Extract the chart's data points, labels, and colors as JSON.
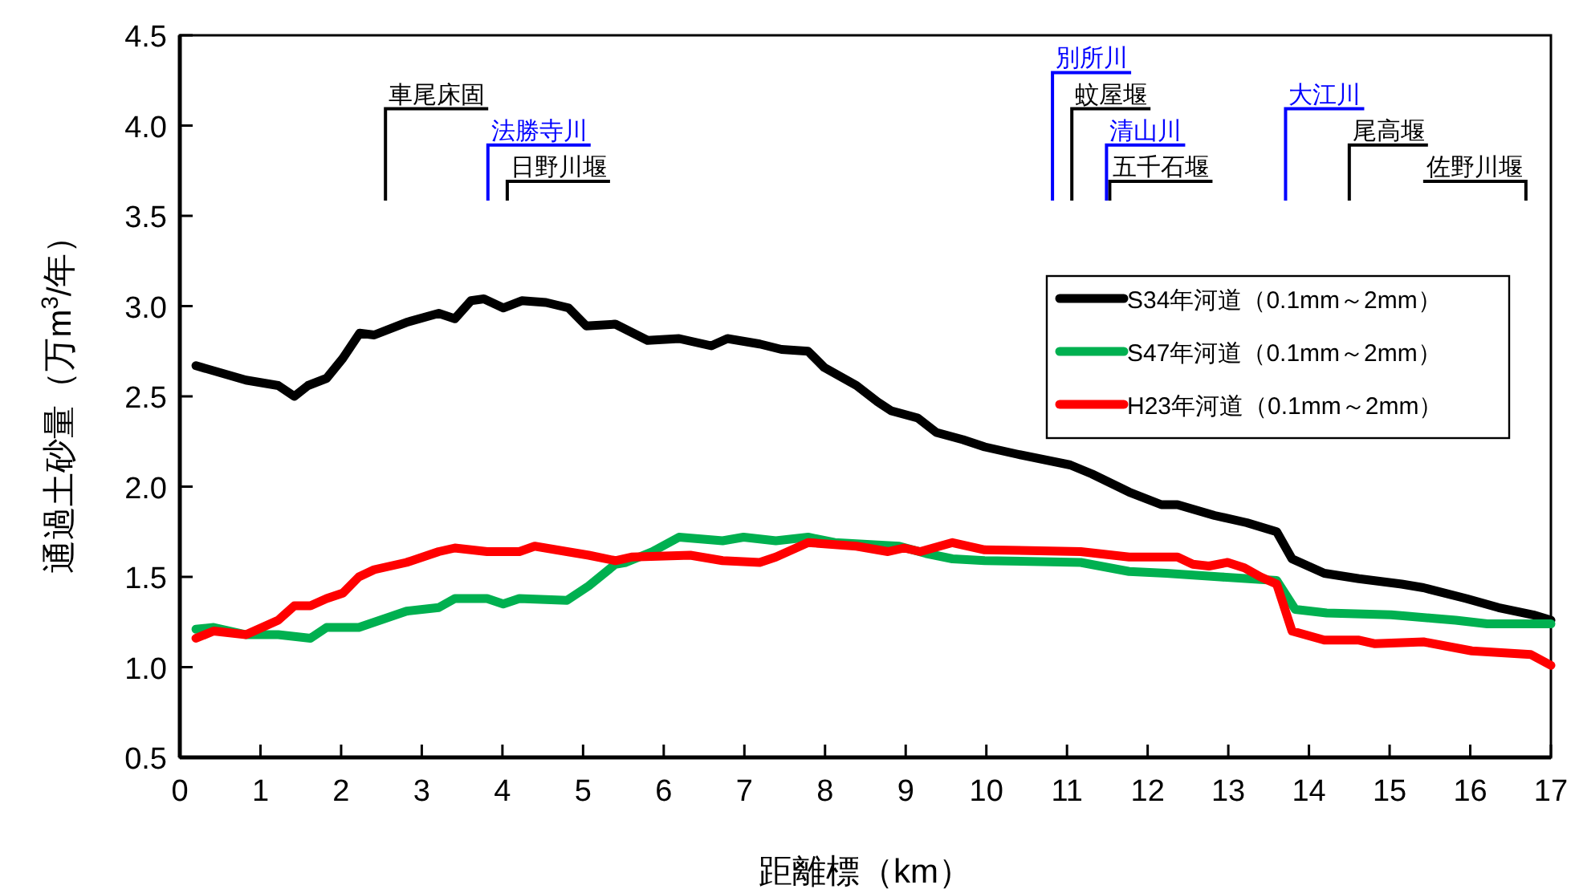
{
  "chart_data": {
    "type": "line",
    "xlabel": "距離標（km）",
    "ylabel": "通過土砂量（万m$^{3}$/年）",
    "xlim": [
      0,
      17
    ],
    "xticks": [
      0,
      1,
      2,
      3,
      4,
      5,
      6,
      7,
      8,
      9,
      10,
      11,
      12,
      13,
      14,
      15,
      16,
      17
    ],
    "ylim": [
      0.5,
      4.5
    ],
    "yticks": [
      0.5,
      {
        "value": 1,
        "label": "1.0"
      },
      1.5,
      {
        "value": 2,
        "label": "2.0"
      },
      2.5,
      {
        "value": 3,
        "label": "3.0"
      },
      3.5,
      {
        "value": 4,
        "label": "4.0"
      },
      4.5
    ],
    "grid": false,
    "legend": "right",
    "marker": "none",
    "line_style": "solid",
    "series": [
      {
        "name": "S34年河道（0.1mm～2mm）",
        "color": "#000000",
        "x": [
          0.2,
          0.82,
          1.22,
          1.42,
          1.59,
          1.82,
          2.02,
          2.23,
          2.41,
          2.81,
          3.21,
          3.41,
          3.61,
          3.77,
          4.01,
          4.24,
          4.54,
          4.82,
          5.04,
          5.4,
          5.8,
          6.19,
          6.59,
          6.79,
          7.19,
          7.46,
          7.79,
          7.99,
          8.39,
          8.65,
          8.82,
          9.15,
          9.38,
          9.71,
          9.98,
          10.38,
          11.04,
          11.31,
          11.77,
          12.17,
          12.37,
          12.83,
          13.23,
          13.6,
          13.79,
          14.19,
          14.62,
          15.15,
          15.42,
          15.95,
          16.35,
          16.78,
          17
        ],
        "values": [
          2.67,
          2.59,
          2.56,
          2.5,
          2.56,
          2.6,
          2.71,
          2.85,
          2.84,
          2.91,
          2.96,
          2.93,
          3.03,
          3.04,
          2.99,
          3.03,
          3.02,
          2.99,
          2.89,
          2.9,
          2.81,
          2.82,
          2.78,
          2.82,
          2.79,
          2.76,
          2.75,
          2.66,
          2.56,
          2.47,
          2.42,
          2.38,
          2.3,
          2.26,
          2.22,
          2.18,
          2.12,
          2.07,
          1.97,
          1.9,
          1.9,
          1.84,
          1.8,
          1.75,
          1.6,
          1.52,
          1.49,
          1.46,
          1.44,
          1.38,
          1.33,
          1.29,
          1.26
        ]
      },
      {
        "name": "S47年河道（0.1mm～2mm）",
        "color": "#00b050",
        "x": [
          0.2,
          0.42,
          0.82,
          1.22,
          1.62,
          1.82,
          2.22,
          2.81,
          3.21,
          3.41,
          3.81,
          4.01,
          4.21,
          4.8,
          5.07,
          5.4,
          5.53,
          5.86,
          6.19,
          6.73,
          6.99,
          7.39,
          7.79,
          8.12,
          8.92,
          9.25,
          9.58,
          9.98,
          11.17,
          11.77,
          12.23,
          12.9,
          13.6,
          13.83,
          14.22,
          15.02,
          15.55,
          15.82,
          16.21,
          17
        ],
        "values": [
          1.21,
          1.22,
          1.18,
          1.18,
          1.16,
          1.22,
          1.22,
          1.31,
          1.33,
          1.38,
          1.38,
          1.35,
          1.38,
          1.37,
          1.45,
          1.57,
          1.58,
          1.64,
          1.72,
          1.7,
          1.72,
          1.7,
          1.72,
          1.69,
          1.67,
          1.63,
          1.6,
          1.59,
          1.58,
          1.53,
          1.52,
          1.5,
          1.48,
          1.32,
          1.3,
          1.29,
          1.27,
          1.26,
          1.24,
          1.24
        ]
      },
      {
        "name": "H23年河道（0.1mm～2mm）",
        "color": "#ff0000",
        "x": [
          0.2,
          0.42,
          0.82,
          1.02,
          1.22,
          1.42,
          1.62,
          1.82,
          2.02,
          2.22,
          2.41,
          2.81,
          3.21,
          3.41,
          3.61,
          3.81,
          4.21,
          4.4,
          4.8,
          5.07,
          5.4,
          5.6,
          6.33,
          6.73,
          7.19,
          7.39,
          7.79,
          8.39,
          8.78,
          8.98,
          9.18,
          9.58,
          9.98,
          11.17,
          11.77,
          12.37,
          12.56,
          12.76,
          12.99,
          13.2,
          13.4,
          13.6,
          13.79,
          14.19,
          14.62,
          14.82,
          15.42,
          16.02,
          16.75,
          17
        ],
        "values": [
          1.16,
          1.2,
          1.18,
          1.22,
          1.26,
          1.34,
          1.34,
          1.38,
          1.41,
          1.5,
          1.54,
          1.58,
          1.64,
          1.66,
          1.65,
          1.64,
          1.64,
          1.67,
          1.64,
          1.62,
          1.59,
          1.61,
          1.62,
          1.59,
          1.58,
          1.61,
          1.69,
          1.67,
          1.64,
          1.66,
          1.64,
          1.69,
          1.65,
          1.64,
          1.61,
          1.61,
          1.57,
          1.56,
          1.58,
          1.55,
          1.5,
          1.46,
          1.2,
          1.15,
          1.15,
          1.13,
          1.14,
          1.09,
          1.07,
          1.01
        ]
      }
    ],
    "ref_lines": [
      {
        "axis": "x",
        "value": 2.55,
        "label": "車尾床固",
        "color": "#000000"
      },
      {
        "axis": "x",
        "value": 3.82,
        "label": "法勝寺川",
        "color": "#0000ff"
      },
      {
        "axis": "x",
        "value": 4.06,
        "label": "日野川堰",
        "color": "#000000"
      },
      {
        "axis": "x",
        "value": 10.82,
        "label": "別所川",
        "color": "#0000ff"
      },
      {
        "axis": "x",
        "value": 11.06,
        "label": "蚊屋堰",
        "color": "#000000"
      },
      {
        "axis": "x",
        "value": 11.49,
        "label": "清山川",
        "color": "#0000ff"
      },
      {
        "axis": "x",
        "value": 11.53,
        "label": "五千石堰",
        "color": "#000000"
      },
      {
        "axis": "x",
        "value": 13.71,
        "label": "大江川",
        "color": "#0000ff"
      },
      {
        "axis": "x",
        "value": 14.5,
        "label": "尾高堰",
        "color": "#000000"
      },
      {
        "axis": "x",
        "value": 16.69,
        "label": "佐野川堰",
        "color": "#000000"
      }
    ]
  }
}
